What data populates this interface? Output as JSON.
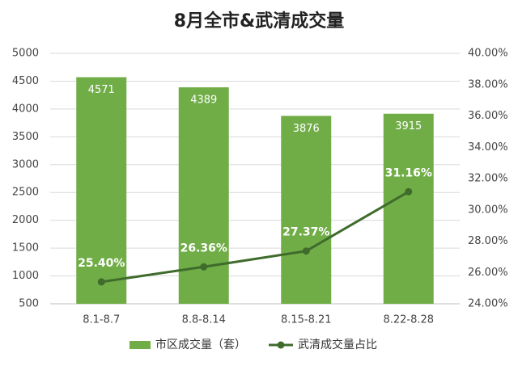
{
  "chart_data": {
    "type": "bar",
    "title": "8月全市&武清成交量",
    "categories": [
      "8.1-8.7",
      "8.8-8.14",
      "8.15-8.21",
      "8.22-8.28"
    ],
    "series": [
      {
        "name": "市区成交量（套）",
        "color": "#70ad47",
        "values": [
          4571,
          4389,
          3876,
          3915
        ]
      },
      {
        "name": "武清成交量占比",
        "color": "#3f6b2c",
        "type": "line",
        "axis": "y2",
        "values": [
          25.4,
          26.36,
          27.37,
          31.16
        ],
        "value_labels": [
          "25.40%",
          "26.36%",
          "27.37%",
          "31.16%"
        ]
      }
    ],
    "ylim": [
      500,
      5000
    ],
    "yticks": [
      500,
      1000,
      1500,
      2000,
      2500,
      3000,
      3500,
      4000,
      4500,
      5000
    ],
    "y2lim": [
      24,
      40
    ],
    "y2ticks": [
      {
        "value": 24,
        "label": "24.00%"
      },
      {
        "value": 26,
        "label": "26.00%"
      },
      {
        "value": 28,
        "label": "28.00%"
      },
      {
        "value": 30,
        "label": "30.00%"
      },
      {
        "value": 32,
        "label": "32.00%"
      },
      {
        "value": 34,
        "label": "34.00%"
      },
      {
        "value": 36,
        "label": "36.00%"
      },
      {
        "value": 38,
        "label": "38.00%"
      },
      {
        "value": 40,
        "label": "40.00%"
      }
    ],
    "grid": true,
    "legend": "bottom"
  }
}
